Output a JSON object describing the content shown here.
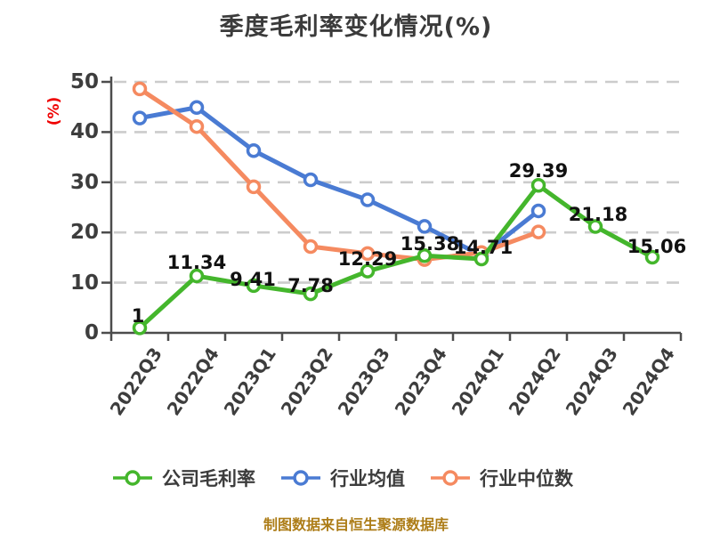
{
  "header": {
    "title": "季度毛利率变化情况(%)"
  },
  "colors": {
    "background": "#ffffff",
    "title_text": "#3b3b3b",
    "tick_text": "#3d3d3d",
    "y_axis_label_red": "#ef0000",
    "grid": "#cccccc",
    "axis": "#4c4c4c",
    "data_label": "#111111",
    "company_green": "#44b62c",
    "industry_mean_blue": "#4a7bd3",
    "industry_median_orange": "#f58a60",
    "footer_gold": "#ad7d18"
  },
  "chart_data": {
    "type": "line",
    "title": "季度毛利率变化情况(%)",
    "xlabel": "",
    "ylabel": "(%)",
    "ylim": [
      0,
      50
    ],
    "yticks": [
      0,
      10,
      20,
      30,
      40,
      50
    ],
    "grid": "horizontal-dashed",
    "legend_position": "bottom",
    "marker": "circle-white-fill",
    "categories": [
      "2022Q3",
      "2022Q4",
      "2023Q1",
      "2023Q2",
      "2023Q3",
      "2023Q4",
      "2024Q1",
      "2024Q2",
      "2024Q3",
      "2024Q4"
    ],
    "series": [
      {
        "id": "company-gross-margin",
        "name": "公司毛利率",
        "color": "#44b62c",
        "values": [
          1,
          11.34,
          9.41,
          7.78,
          12.29,
          15.38,
          14.71,
          29.39,
          21.18,
          15.06
        ],
        "point_labels": [
          "1",
          "11.34",
          "9.41",
          "7.78",
          "12.29",
          "15.38",
          "14.71",
          "29.39",
          "21.18",
          "15.06"
        ]
      },
      {
        "id": "industry-mean",
        "name": "行业均值",
        "color": "#4a7bd3",
        "values": [
          42.8,
          44.9,
          36.3,
          30.5,
          26.5,
          21.2,
          15.4,
          24.3,
          null,
          null
        ],
        "point_labels": null
      },
      {
        "id": "industry-median",
        "name": "行业中位数",
        "color": "#f58a60",
        "values": [
          48.6,
          41.1,
          29.1,
          17.2,
          15.8,
          14.6,
          16.0,
          20.1,
          null,
          null
        ],
        "point_labels": null
      }
    ]
  },
  "footer": {
    "source_note": "制图数据来自恒生聚源数据库"
  }
}
